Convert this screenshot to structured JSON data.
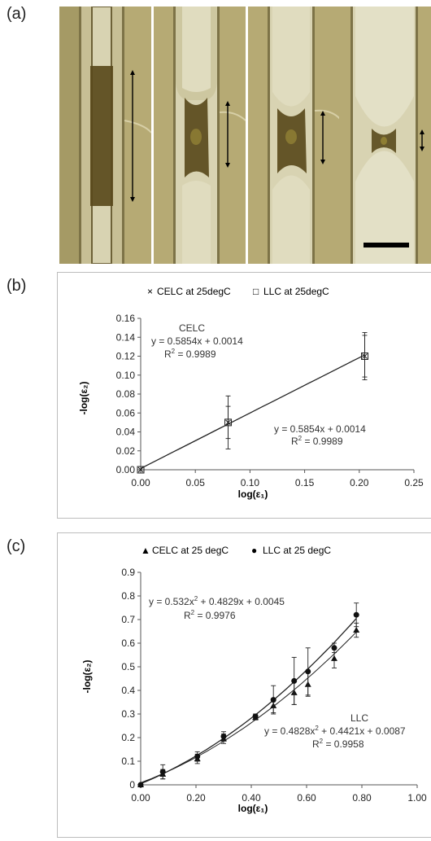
{
  "panels": {
    "a_label": "(a)",
    "b_label": "(b)",
    "c_label": "(c)"
  },
  "micrographs": {
    "count": 4,
    "colors": {
      "background": "#b6aa74",
      "channel": "#cfc9a4",
      "wall": "#8d8252",
      "droplet": "#5a4a1c"
    }
  },
  "chart_data": [
    {
      "type": "scatter",
      "xlabel": "log(ε₁)",
      "ylabel": "-log(ε₂)",
      "xlim": [
        0,
        0.25
      ],
      "ylim": [
        0,
        0.16
      ],
      "xticks": [
        "0.00",
        "0.05",
        "0.10",
        "0.15",
        "0.20",
        "0.25"
      ],
      "yticks": [
        "0.00",
        "0.02",
        "0.04",
        "0.06",
        "0.08",
        "0.10",
        "0.12",
        "0.14",
        "0.16"
      ],
      "legend": [
        {
          "marker": "×",
          "label": "CELC at 25degC"
        },
        {
          "marker": "□",
          "label": "LLC at 25degC"
        }
      ],
      "series": [
        {
          "name": "CELC at 25degC",
          "marker": "cross",
          "points": [
            {
              "x": 0.0,
              "y": 0.0,
              "err": 0.0
            },
            {
              "x": 0.08,
              "y": 0.05,
              "err": 0.028
            },
            {
              "x": 0.205,
              "y": 0.12,
              "err": 0.025
            }
          ]
        },
        {
          "name": "LLC at 25degC",
          "marker": "square",
          "points": [
            {
              "x": 0.0,
              "y": 0.0,
              "err": 0.0
            },
            {
              "x": 0.08,
              "y": 0.05,
              "err": 0.017
            },
            {
              "x": 0.205,
              "y": 0.12,
              "err": 0.022
            }
          ]
        }
      ],
      "fits": [
        {
          "a": 0,
          "b": 0.5854,
          "c": 0.0014,
          "x_range": [
            0,
            0.205
          ]
        }
      ],
      "annotations": {
        "celc_title": "CELC",
        "celc_equation": "y = 0.5854x + 0.0014",
        "celc_r2_prefix": "R",
        "celc_r2_value": " = 0.9989",
        "llc_equation": "y = 0.5854x + 0.0014",
        "llc_r2_prefix": "R",
        "llc_r2_value": " = 0.9989"
      }
    },
    {
      "type": "scatter",
      "xlabel": "log(ε₁)",
      "ylabel": "-log(ε₂)",
      "xlim": [
        0,
        1.0
      ],
      "ylim": [
        0,
        0.9
      ],
      "xticks": [
        "0.00",
        "0.20",
        "0.40",
        "0.60",
        "0.80",
        "1.00"
      ],
      "yticks": [
        "0",
        "0.1",
        "0.2",
        "0.3",
        "0.4",
        "0.5",
        "0.6",
        "0.7",
        "0.8",
        "0.9"
      ],
      "legend": [
        {
          "marker": "▲",
          "label": "CELC at 25 degC"
        },
        {
          "marker": "●",
          "label": "LLC at 25 degC"
        }
      ],
      "series": [
        {
          "name": "CELC at 25 degC",
          "marker": "triangle",
          "points": [
            {
              "x": 0.0,
              "y": 0.0,
              "err": 0.0
            },
            {
              "x": 0.08,
              "y": 0.045,
              "err": 0.02
            },
            {
              "x": 0.205,
              "y": 0.11,
              "err": 0.02
            },
            {
              "x": 0.3,
              "y": 0.195,
              "err": 0.02
            },
            {
              "x": 0.415,
              "y": 0.285,
              "err": 0.01
            },
            {
              "x": 0.48,
              "y": 0.335,
              "err": 0.03
            },
            {
              "x": 0.555,
              "y": 0.39,
              "err": 0.05
            },
            {
              "x": 0.605,
              "y": 0.425,
              "err": 0.05
            },
            {
              "x": 0.7,
              "y": 0.535,
              "err": 0.04
            },
            {
              "x": 0.78,
              "y": 0.655,
              "err": 0.03
            }
          ]
        },
        {
          "name": "LLC at 25 degC",
          "marker": "circle",
          "points": [
            {
              "x": 0.0,
              "y": 0.0,
              "err": 0.0
            },
            {
              "x": 0.08,
              "y": 0.055,
              "err": 0.03
            },
            {
              "x": 0.205,
              "y": 0.12,
              "err": 0.02
            },
            {
              "x": 0.3,
              "y": 0.205,
              "err": 0.02
            },
            {
              "x": 0.415,
              "y": 0.29,
              "err": 0.01
            },
            {
              "x": 0.48,
              "y": 0.36,
              "err": 0.06
            },
            {
              "x": 0.555,
              "y": 0.44,
              "err": 0.1
            },
            {
              "x": 0.605,
              "y": 0.48,
              "err": 0.1
            },
            {
              "x": 0.7,
              "y": 0.58,
              "err": 0.02
            },
            {
              "x": 0.78,
              "y": 0.72,
              "err": 0.05
            }
          ]
        }
      ],
      "fits": [
        {
          "a": 0.532,
          "b": 0.4829,
          "c": 0.0045,
          "x_range": [
            0,
            0.78
          ]
        },
        {
          "a": 0.4828,
          "b": 0.4421,
          "c": 0.0087,
          "x_range": [
            0,
            0.78
          ]
        }
      ],
      "annotations": {
        "celc_equation_part1": "y = 0.532x",
        "celc_equation_part2": " + 0.4829x + 0.0045",
        "celc_r2_prefix": "R",
        "celc_r2_value": " = 0.9976",
        "llc_title": "LLC",
        "llc_equation_part1": "y = 0.4828x",
        "llc_equation_part2": " + 0.4421x + 0.0087",
        "llc_r2_prefix": "R",
        "llc_r2_value": " = 0.9958"
      }
    }
  ]
}
